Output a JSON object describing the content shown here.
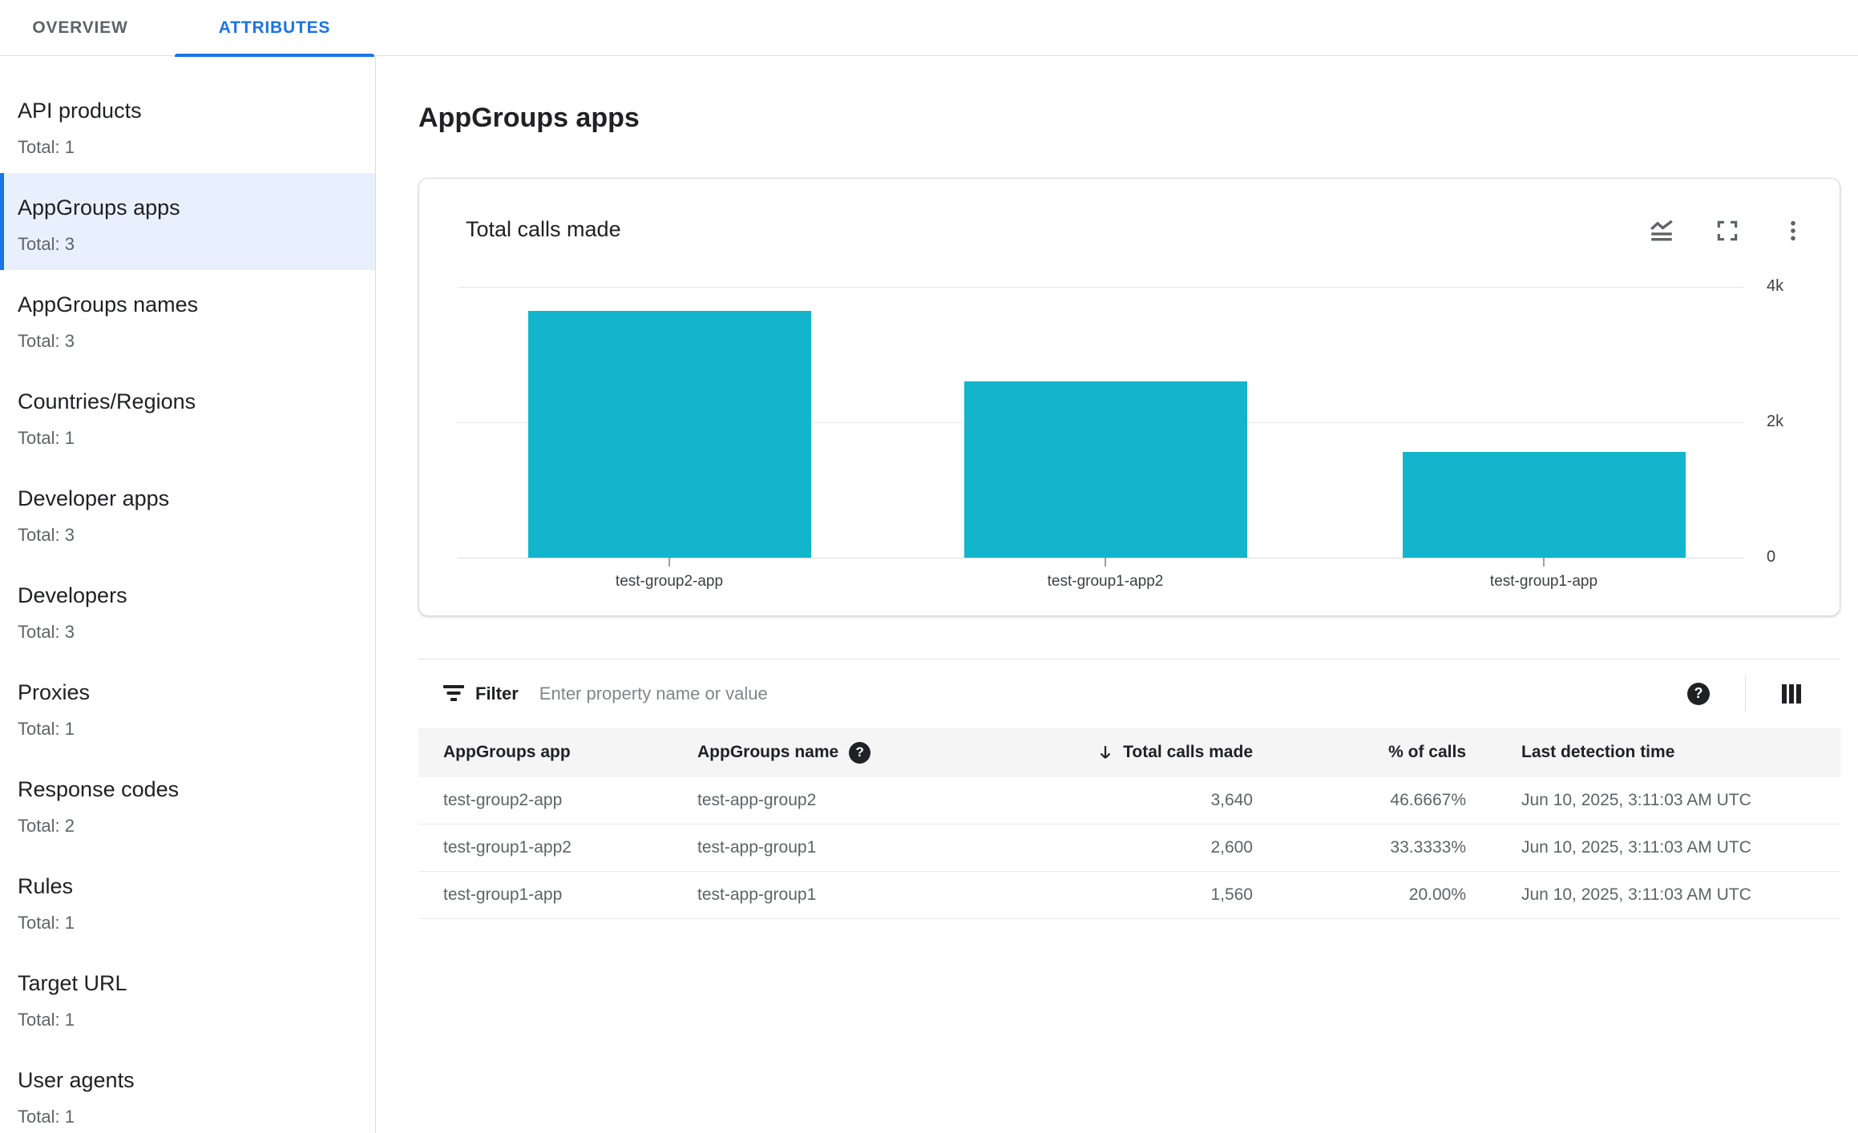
{
  "tabs": [
    {
      "label": "OVERVIEW",
      "active": false
    },
    {
      "label": "ATTRIBUTES",
      "active": true
    }
  ],
  "sidebar": {
    "items": [
      {
        "label": "API products",
        "total": "Total: 1",
        "selected": false
      },
      {
        "label": "AppGroups apps",
        "total": "Total: 3",
        "selected": true
      },
      {
        "label": "AppGroups names",
        "total": "Total: 3",
        "selected": false
      },
      {
        "label": "Countries/Regions",
        "total": "Total: 1",
        "selected": false
      },
      {
        "label": "Developer apps",
        "total": "Total: 3",
        "selected": false
      },
      {
        "label": "Developers",
        "total": "Total: 3",
        "selected": false
      },
      {
        "label": "Proxies",
        "total": "Total: 1",
        "selected": false
      },
      {
        "label": "Response codes",
        "total": "Total: 2",
        "selected": false
      },
      {
        "label": "Rules",
        "total": "Total: 1",
        "selected": false
      },
      {
        "label": "Target URL",
        "total": "Total: 1",
        "selected": false
      },
      {
        "label": "User agents",
        "total": "Total: 1",
        "selected": false
      }
    ]
  },
  "main": {
    "title": "AppGroups apps"
  },
  "chart_card": {
    "title": "Total calls made",
    "icons": [
      "stacked-line-chart-icon",
      "fullscreen-icon",
      "more-vert-icon"
    ]
  },
  "chart_data": {
    "type": "bar",
    "title": "Total calls made",
    "categories": [
      "test-group2-app",
      "test-group1-app2",
      "test-group1-app"
    ],
    "values": [
      3640,
      2600,
      1560
    ],
    "xlabel": "",
    "ylabel": "",
    "ylim": [
      0,
      4000
    ],
    "yticks": [
      {
        "value": 4000,
        "label": "4k"
      },
      {
        "value": 2000,
        "label": "2k"
      },
      {
        "value": 0,
        "label": "0"
      }
    ],
    "grid": "horizontal",
    "ytick_side": "right",
    "legend": "none",
    "bar_color": "#12b5cb"
  },
  "filter": {
    "label": "Filter",
    "placeholder": "Enter property name or value"
  },
  "table": {
    "columns": [
      {
        "label": "AppGroups app"
      },
      {
        "label": "AppGroups name",
        "help_icon": true
      },
      {
        "label": "Total calls made",
        "sorted": "desc",
        "align": "right"
      },
      {
        "label": "% of calls",
        "align": "right"
      },
      {
        "label": "Last detection time"
      }
    ],
    "rows": [
      [
        "test-group2-app",
        "test-app-group2",
        "3,640",
        "46.6667%",
        "Jun 10, 2025, 3:11:03 AM UTC"
      ],
      [
        "test-group1-app2",
        "test-app-group1",
        "2,600",
        "33.3333%",
        "Jun 10, 2025, 3:11:03 AM UTC"
      ],
      [
        "test-group1-app",
        "test-app-group1",
        "1,560",
        "20.00%",
        "Jun 10, 2025, 3:11:03 AM UTC"
      ]
    ]
  },
  "colors": {
    "accent_blue": "#1a73e8",
    "selected_bg": "#e8f0fe",
    "bar_teal": "#12b5cb",
    "text_dark": "#202124",
    "text_gray": "#5f6368",
    "border": "#dadce0",
    "header_bg": "#f5f5f5"
  }
}
